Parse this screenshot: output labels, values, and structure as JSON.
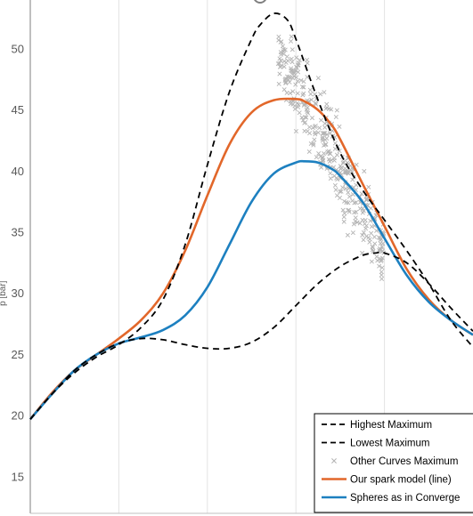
{
  "chart_data": {
    "type": "line",
    "ylabel": "p [bar]",
    "ylim": [
      12,
      54
    ],
    "xlim": [
      0,
      100
    ],
    "yticks": [
      "15",
      "20",
      "25",
      "30",
      "35",
      "40",
      "45",
      "50"
    ],
    "grid": "vertical",
    "legend_position": "bottom-right",
    "series": [
      {
        "name": "Highest Maximum",
        "style": "dashed",
        "color": "#000000",
        "x": [
          0,
          5,
          10,
          15,
          20,
          25,
          30,
          35,
          40,
          45,
          50,
          52,
          55,
          58,
          60,
          65,
          70,
          75,
          80,
          85,
          90,
          95,
          100
        ],
        "y": [
          19.7,
          21.8,
          23.5,
          24.8,
          25.8,
          27.2,
          29.5,
          34.0,
          40.5,
          46.5,
          50.8,
          52.0,
          52.9,
          52.4,
          50.8,
          45.8,
          41.5,
          38.5,
          36.0,
          33.5,
          30.8,
          27.8,
          25.6
        ]
      },
      {
        "name": "Lowest Maximum",
        "style": "dashed",
        "color": "#000000",
        "x": [
          0,
          5,
          10,
          15,
          20,
          25,
          30,
          35,
          40,
          45,
          50,
          55,
          60,
          65,
          70,
          75,
          78,
          80,
          85,
          90,
          95,
          100
        ],
        "y": [
          19.7,
          21.8,
          23.7,
          25.0,
          25.9,
          26.3,
          26.2,
          25.8,
          25.5,
          25.5,
          26.0,
          27.2,
          29.0,
          30.8,
          32.2,
          33.1,
          33.3,
          33.3,
          32.5,
          30.8,
          28.8,
          26.9
        ]
      },
      {
        "name": "Our spark model (line)",
        "style": "solid",
        "color": "#e2672a",
        "x": [
          0,
          5,
          10,
          15,
          20,
          25,
          30,
          35,
          40,
          45,
          50,
          55,
          60,
          62,
          65,
          68,
          70,
          75,
          80,
          85,
          90,
          95,
          100
        ],
        "y": [
          19.7,
          21.9,
          23.7,
          25.0,
          26.3,
          27.8,
          30.0,
          33.5,
          38.0,
          42.2,
          44.8,
          45.8,
          45.9,
          45.7,
          45.0,
          43.8,
          42.6,
          39.0,
          35.5,
          32.0,
          29.5,
          27.8,
          26.6
        ]
      },
      {
        "name": "Spheres as in Converge",
        "style": "solid",
        "color": "#1d80c0",
        "x": [
          0,
          5,
          10,
          15,
          20,
          25,
          30,
          35,
          40,
          45,
          50,
          55,
          60,
          62,
          65,
          68,
          70,
          75,
          80,
          85,
          90,
          95,
          100
        ],
        "y": [
          19.7,
          21.8,
          23.7,
          25.0,
          25.9,
          26.4,
          27.0,
          28.2,
          30.5,
          34.0,
          37.5,
          39.8,
          40.7,
          40.8,
          40.7,
          40.2,
          39.6,
          37.5,
          34.5,
          31.5,
          29.3,
          27.8,
          26.6
        ]
      }
    ],
    "scatter": {
      "name": "Other Curves Maximum",
      "marker": "x",
      "color": "#b3b3b3",
      "x_range": [
        56,
        80
      ],
      "y_range": [
        33.5,
        50.0
      ]
    }
  }
}
